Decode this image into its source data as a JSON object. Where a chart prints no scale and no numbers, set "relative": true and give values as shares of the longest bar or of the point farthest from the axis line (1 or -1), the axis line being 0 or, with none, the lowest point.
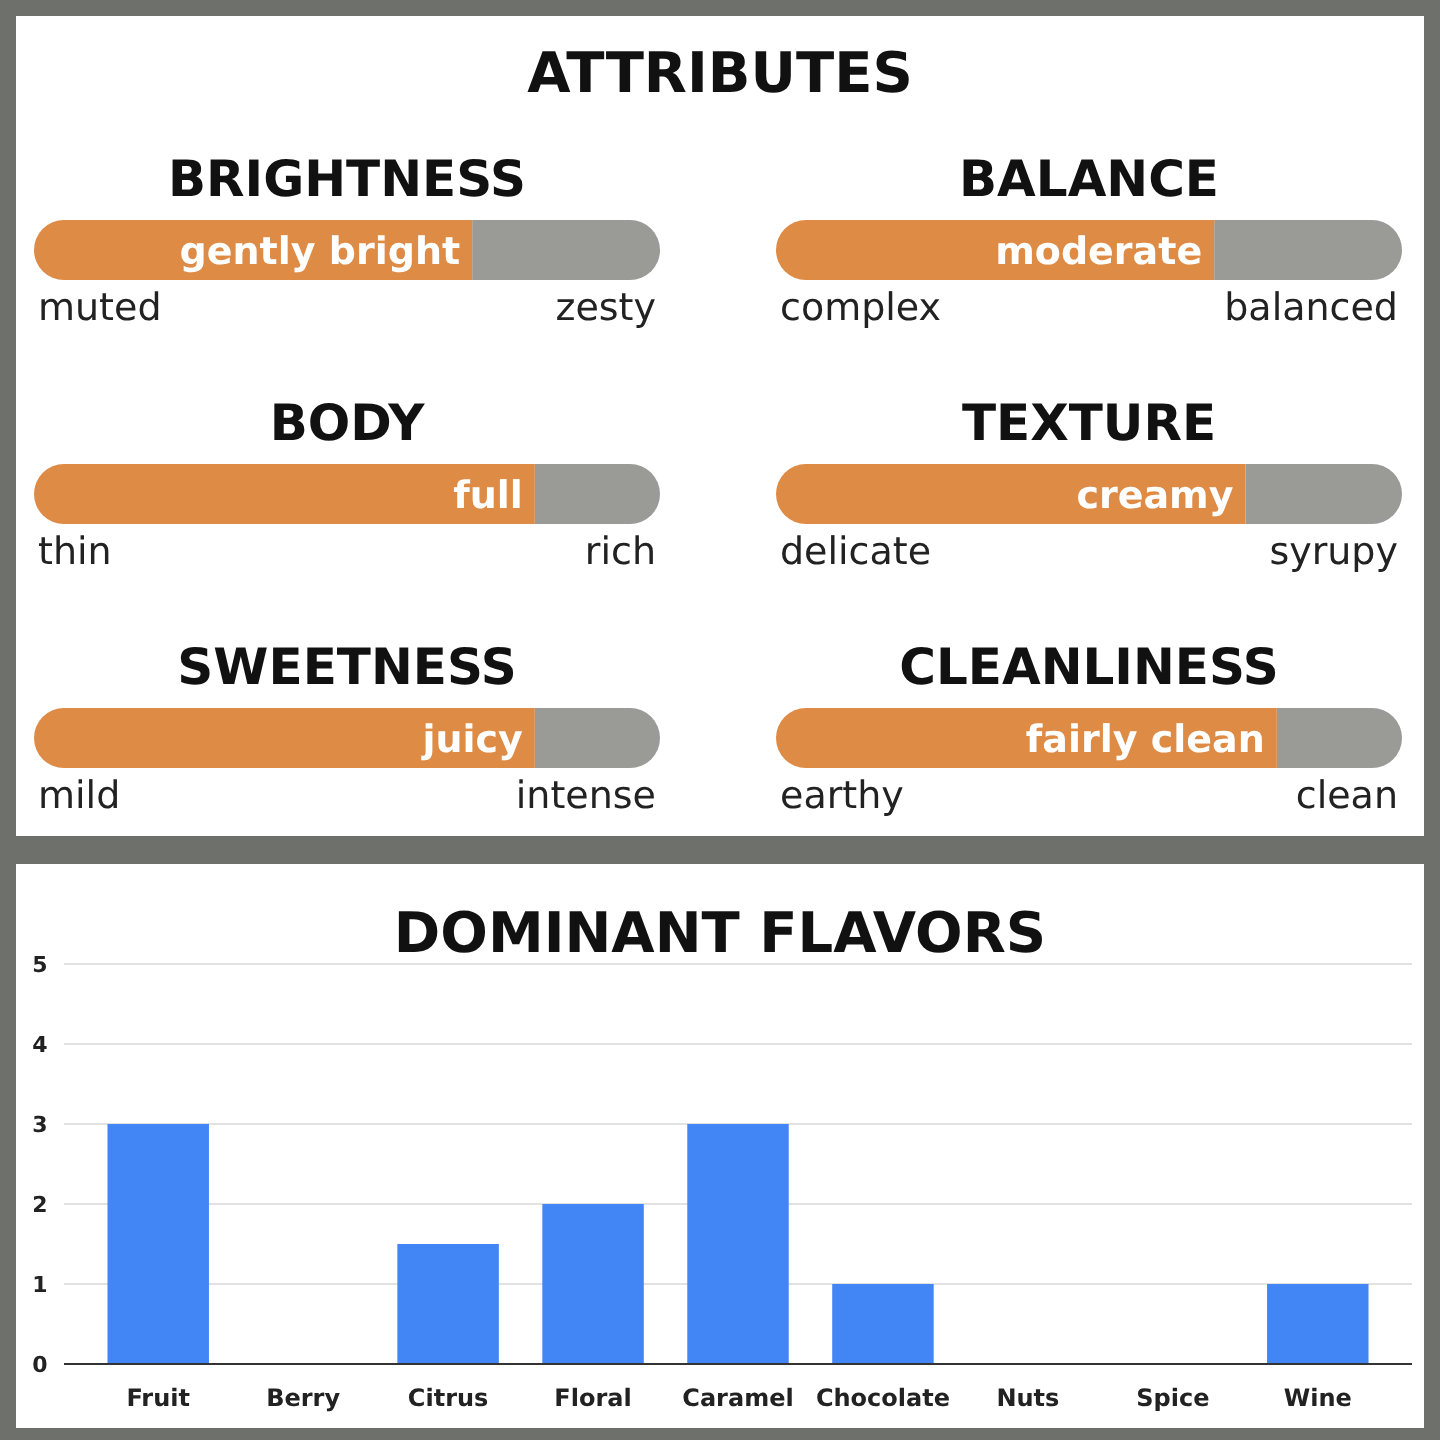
{
  "chart_data": [
    {
      "type": "other",
      "title": "ATTRIBUTES"
    },
    {
      "type": "bar",
      "orientation": "horizontal",
      "stacked": true,
      "relative": true,
      "title": "BRIGHTNESS",
      "categories": [
        null
      ],
      "series": [
        {
          "color": "#dd8b45",
          "values": [
            0.7
          ]
        },
        {
          "color": "#9a9b97",
          "values": [
            0.3
          ]
        }
      ],
      "annotations": [
        "muted",
        "zesty",
        {
          "text": "gently bright",
          "x": 0.7
        }
      ]
    },
    {
      "type": "bar",
      "orientation": "horizontal",
      "stacked": true,
      "relative": true,
      "title": "BALANCE",
      "categories": [
        null
      ],
      "series": [
        {
          "color": "#dd8b45",
          "values": [
            0.7
          ]
        },
        {
          "color": "#9a9b97",
          "values": [
            0.3
          ]
        }
      ],
      "annotations": [
        "complex",
        "balanced",
        {
          "text": "moderate",
          "x": 0.7
        }
      ]
    },
    {
      "type": "bar",
      "orientation": "horizontal",
      "stacked": true,
      "relative": true,
      "title": "BODY",
      "categories": [
        null
      ],
      "series": [
        {
          "color": "#dd8b45",
          "values": [
            0.8
          ]
        },
        {
          "color": "#9a9b97",
          "values": [
            0.2
          ]
        }
      ],
      "annotations": [
        "thin",
        "rich",
        {
          "text": "full",
          "x": 0.8
        }
      ]
    },
    {
      "type": "bar",
      "orientation": "horizontal",
      "stacked": true,
      "relative": true,
      "title": "TEXTURE",
      "categories": [
        null
      ],
      "series": [
        {
          "color": "#dd8b45",
          "values": [
            0.75
          ]
        },
        {
          "color": "#9a9b97",
          "values": [
            0.25
          ]
        }
      ],
      "annotations": [
        "delicate",
        "syrupy",
        {
          "text": "creamy",
          "x": 0.75
        }
      ]
    },
    {
      "type": "bar",
      "orientation": "horizontal",
      "stacked": true,
      "relative": true,
      "title": "SWEETNESS",
      "categories": [
        null
      ],
      "series": [
        {
          "color": "#dd8b45",
          "values": [
            0.8
          ]
        },
        {
          "color": "#9a9b97",
          "values": [
            0.2
          ]
        }
      ],
      "annotations": [
        "mild",
        "intense",
        {
          "text": "juicy",
          "x": 0.8
        }
      ]
    },
    {
      "type": "bar",
      "orientation": "horizontal",
      "stacked": true,
      "relative": true,
      "title": "CLEANLINESS",
      "categories": [
        null
      ],
      "series": [
        {
          "color": "#dd8b45",
          "values": [
            0.8
          ]
        },
        {
          "color": "#9a9b97",
          "values": [
            0.2
          ]
        }
      ],
      "annotations": [
        "earthy",
        "clean",
        {
          "text": "fairly clean",
          "x": 0.8
        }
      ]
    },
    {
      "type": "bar",
      "title": "DOMINANT FLAVORS",
      "categories": [
        "Fruit",
        "Berry",
        "Citrus",
        "Floral",
        "Caramel",
        "Chocolate",
        "Nuts",
        "Spice",
        "Wine"
      ],
      "values": [
        3,
        0,
        1.5,
        2,
        3,
        1,
        0,
        0,
        1
      ],
      "color": "#4285f4",
      "ylim": [
        0,
        5
      ],
      "yticks": [
        0,
        1,
        2,
        3,
        4,
        5
      ],
      "grid": "y"
    }
  ]
}
